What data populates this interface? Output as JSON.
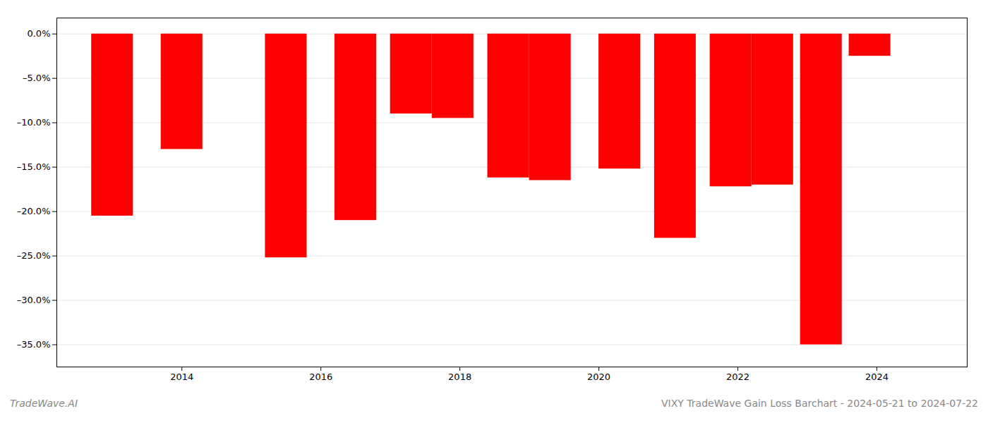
{
  "chart_data": {
    "type": "bar",
    "title": "VIXY TradeWave Gain Loss Barchart - 2024-05-21 to 2024-07-22",
    "annotations": [
      "TradeWave.AI"
    ],
    "x": [
      2013.0,
      2014.0,
      2015.5,
      2016.5,
      2017.3,
      2017.9,
      2018.7,
      2019.3,
      2020.3,
      2021.1,
      2021.9,
      2022.5,
      2023.2,
      2023.9
    ],
    "values": [
      -20.5,
      -13.0,
      -25.2,
      -21.0,
      -9.0,
      -9.5,
      -16.2,
      -16.5,
      -15.2,
      -23.0,
      -17.2,
      -17.0,
      -35.0,
      -2.5
    ],
    "color": "#ff0000",
    "xlim": [
      2012.2,
      2025.3
    ],
    "xticks": [
      2014,
      2016,
      2018,
      2020,
      2022,
      2024
    ],
    "ylim": [
      -37.5,
      1.8
    ],
    "yticks": [
      {
        "value": 0.0,
        "label": "0.0%"
      },
      {
        "value": -5.0,
        "label": "–5.0%"
      },
      {
        "value": -10.0,
        "label": "–10.0%"
      },
      {
        "value": -15.0,
        "label": "–15.0%"
      },
      {
        "value": -20.0,
        "label": "–20.0%"
      },
      {
        "value": -25.0,
        "label": "–25.0%"
      },
      {
        "value": -30.0,
        "label": "–30.0%"
      },
      {
        "value": -35.0,
        "label": "–35.0%"
      }
    ],
    "grid": "y"
  }
}
